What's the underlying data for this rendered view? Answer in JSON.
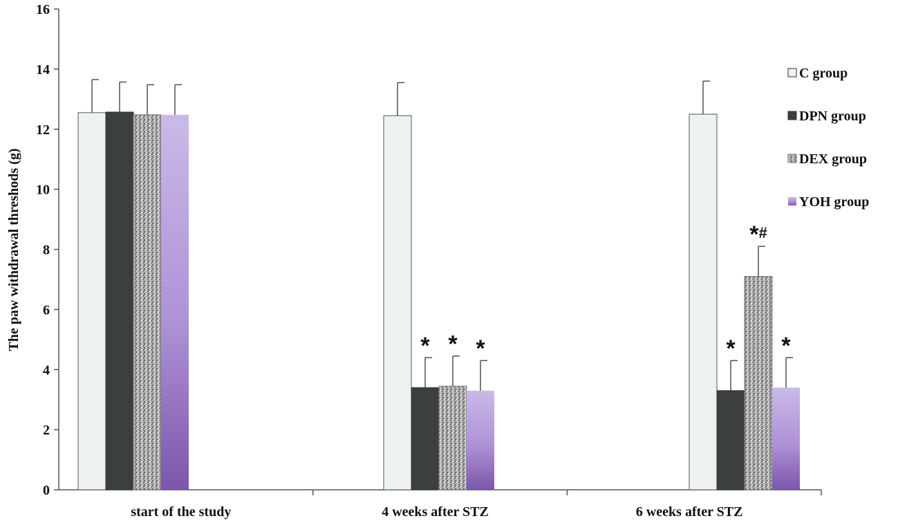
{
  "chart_data": {
    "type": "bar",
    "title": "",
    "xlabel": "",
    "ylabel": "The paw withdrawal threshods (g)",
    "ylim": [
      0,
      16
    ],
    "yticks": [
      0,
      2,
      4,
      6,
      8,
      10,
      12,
      14,
      16
    ],
    "categories": [
      "start of the study",
      "4 weeks after STZ",
      "6 weeks after STZ"
    ],
    "series": [
      {
        "name": "C group",
        "values": [
          12.55,
          12.45,
          12.5
        ],
        "errors": [
          1.1,
          1.1,
          1.1
        ],
        "marks": [
          "",
          "",
          ""
        ]
      },
      {
        "name": "DPN group",
        "values": [
          12.57,
          3.4,
          3.3
        ],
        "errors": [
          1.0,
          1.0,
          1.0
        ],
        "marks": [
          "",
          "*",
          "*"
        ]
      },
      {
        "name": "DEX group",
        "values": [
          12.48,
          3.45,
          7.1
        ],
        "errors": [
          1.0,
          1.0,
          1.0
        ],
        "marks": [
          "",
          "*",
          "*#"
        ]
      },
      {
        "name": "YOH group",
        "values": [
          12.48,
          3.3,
          3.4
        ],
        "errors": [
          1.0,
          1.0,
          1.0
        ],
        "marks": [
          "",
          "*",
          "*"
        ]
      }
    ],
    "legend_position": "right",
    "grid": false,
    "colors": {
      "C group": "#eef2f2",
      "DPN group": "#3c3f40",
      "DEX group": "#9a9a9a",
      "YOH group_top": "#c7b4e6",
      "YOH group_bottom": "#7c56ab"
    }
  }
}
